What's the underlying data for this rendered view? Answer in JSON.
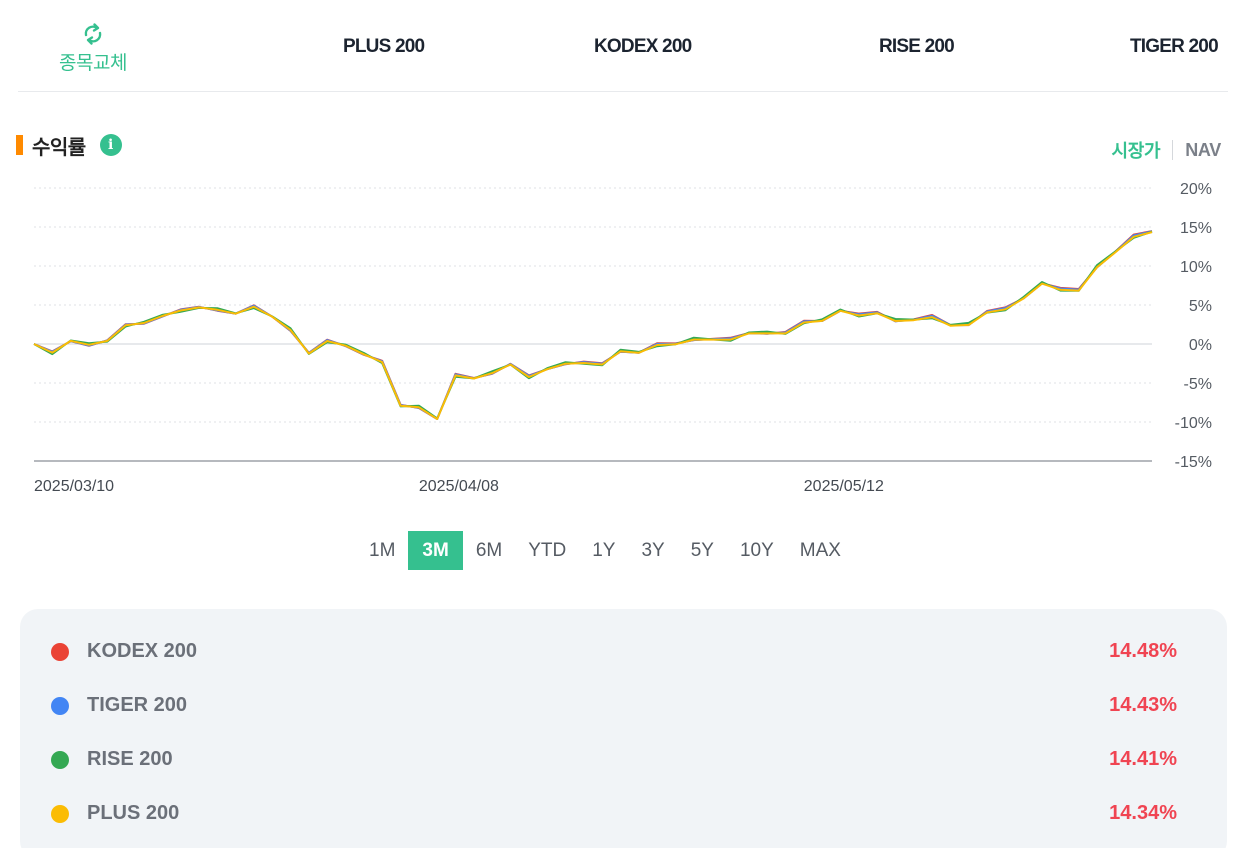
{
  "header": {
    "swap_label": "종목교체",
    "tabs": [
      "PLUS 200",
      "KODEX 200",
      "RISE 200",
      "TIGER 200"
    ]
  },
  "section": {
    "title": "수익률",
    "info_icon": "info-icon",
    "toggle": {
      "active": "시장가",
      "inactive": "NAV"
    }
  },
  "periods": {
    "options": [
      "1M",
      "3M",
      "6M",
      "YTD",
      "1Y",
      "3Y",
      "5Y",
      "10Y",
      "MAX"
    ],
    "selected": "3M"
  },
  "colors": {
    "accent": "#35c08f",
    "marker": "#ff8a00",
    "positive": "#f04452",
    "kodex": "#ea4335",
    "tiger": "#4285f4",
    "rise": "#34a853",
    "plus": "#fbbc04"
  },
  "chart_data": {
    "type": "line",
    "x_ticks": [
      "2025/03/10",
      "2025/04/08",
      "2025/05/12"
    ],
    "y_ticks": [
      "20%",
      "15%",
      "10%",
      "5%",
      "0%",
      "-5%",
      "-10%",
      "-15%"
    ],
    "ylim": [
      -15,
      20
    ],
    "grid": true,
    "values": [
      0,
      -1.1,
      0.4,
      -0.1,
      0.4,
      2.4,
      2.7,
      3.6,
      4.3,
      4.7,
      4.4,
      3.9,
      4.8,
      3.5,
      1.8,
      -1.2,
      0.4,
      -0.2,
      -1.3,
      -2.3,
      -7.9,
      -8.1,
      -9.6,
      -4.0,
      -4.4,
      -3.7,
      -2.6,
      -4.2,
      -3.2,
      -2.5,
      -2.4,
      -2.6,
      -0.9,
      -1.1,
      -0.1,
      0.0,
      0.6,
      0.6,
      0.6,
      1.4,
      1.4,
      1.4,
      2.8,
      3.0,
      4.3,
      3.7,
      4.0,
      3.0,
      3.1,
      3.5,
      2.4,
      2.5,
      4.1,
      4.5,
      5.9,
      7.8,
      7.0,
      6.9,
      9.9,
      11.8,
      13.8,
      14.4
    ],
    "series": [
      {
        "name": "KODEX 200",
        "final": 14.48,
        "label": "14.48%",
        "color": "#ea4335"
      },
      {
        "name": "TIGER 200",
        "final": 14.43,
        "label": "14.43%",
        "color": "#4285f4"
      },
      {
        "name": "RISE 200",
        "final": 14.41,
        "label": "14.41%",
        "color": "#34a853"
      },
      {
        "name": "PLUS 200",
        "final": 14.34,
        "label": "14.34%",
        "color": "#fbbc04"
      }
    ]
  }
}
